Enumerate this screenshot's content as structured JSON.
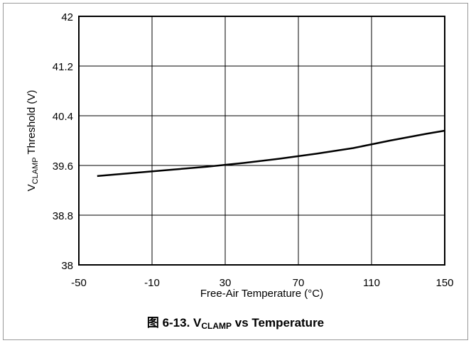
{
  "chart_data": {
    "type": "line",
    "xlabel": "Free-Air Temperature (°C)",
    "ylabel": {
      "base": "V",
      "sub": "CLAMP",
      "rest": " Threshold (V)"
    },
    "xlim": [
      -50,
      150
    ],
    "ylim": [
      38,
      42
    ],
    "xticks": [
      "-50",
      "-10",
      "30",
      "70",
      "110",
      "150"
    ],
    "yticks": [
      "38",
      "38.8",
      "39.6",
      "40.4",
      "41.2",
      "42"
    ],
    "xtick_values": [
      -50,
      -10,
      30,
      70,
      110,
      150
    ],
    "ytick_values": [
      38,
      38.8,
      39.6,
      40.4,
      41.2,
      42
    ],
    "grid": true,
    "series": [
      {
        "color": "#000000",
        "x": [
          -40,
          -20,
          0,
          20,
          40,
          60,
          80,
          100,
          120,
          140,
          150
        ],
        "y": [
          39.43,
          39.48,
          39.53,
          39.58,
          39.64,
          39.71,
          39.79,
          39.88,
          40.0,
          40.11,
          40.16
        ]
      }
    ]
  },
  "caption": {
    "prefix": "图 6-13. V",
    "sub": "CLAMP",
    "suffix": " vs Temperature"
  }
}
